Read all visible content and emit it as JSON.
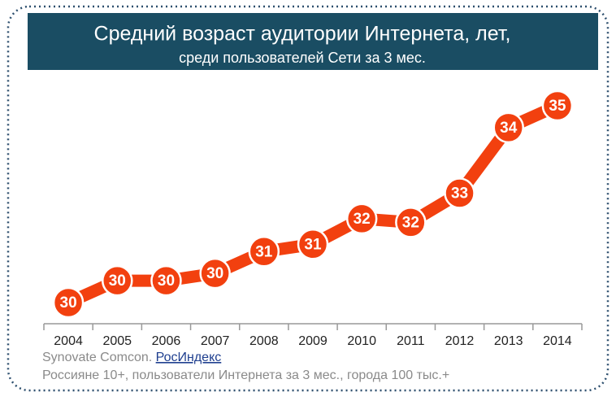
{
  "chart_data": {
    "type": "line",
    "title": "Средний возраст аудитории Интернета, лет,",
    "subtitle": "среди пользователей Сети за 3 мес.",
    "categories": [
      "2004",
      "2005",
      "2006",
      "2007",
      "2008",
      "2009",
      "2010",
      "2011",
      "2012",
      "2013",
      "2014"
    ],
    "values": [
      29.6,
      30.2,
      30.2,
      30.4,
      31.0,
      31.2,
      31.9,
      31.8,
      32.6,
      34.4,
      35.0
    ],
    "value_labels": [
      "30",
      "30",
      "30",
      "30",
      "31",
      "31",
      "32",
      "32",
      "33",
      "34",
      "35"
    ],
    "color": "#f2400f",
    "source": "Synovate Comcon.",
    "source_link": "РосИндекс",
    "note": "Россияне 10+, пользователи Интернета за 3 мес., города 100 тыс.+"
  }
}
